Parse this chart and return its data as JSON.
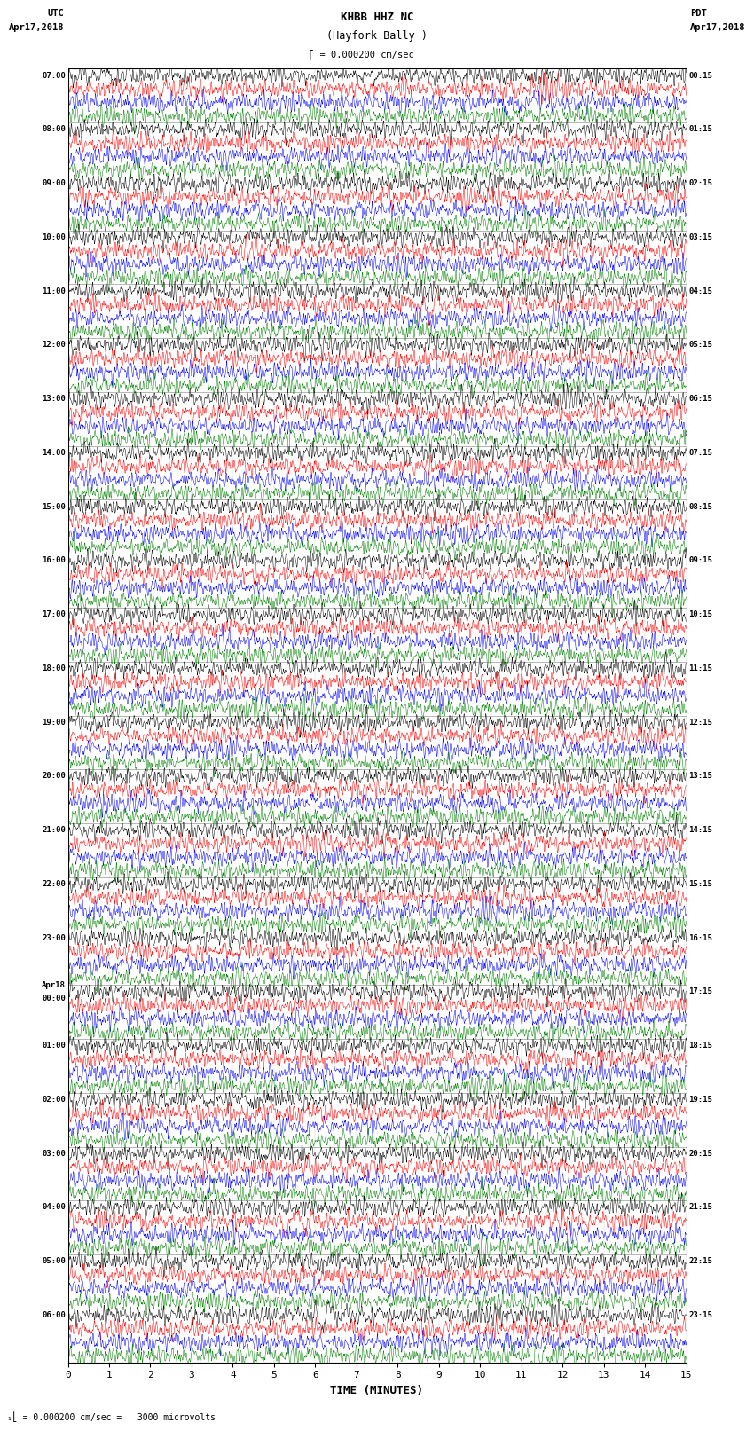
{
  "title_line1": "KHBB HHZ NC",
  "title_line2": "(Hayfork Bally )",
  "scale_label": "= 0.000200 cm/sec",
  "bottom_annotation": "= 0.000200 cm/sec =   3000 microvolts",
  "left_header": "UTC",
  "left_date": "Apr17,2018",
  "right_header": "PDT",
  "right_date": "Apr17,2018",
  "xlabel": "TIME (MINUTES)",
  "xticks": [
    0,
    1,
    2,
    3,
    4,
    5,
    6,
    7,
    8,
    9,
    10,
    11,
    12,
    13,
    14,
    15
  ],
  "figsize": [
    8.5,
    16.13
  ],
  "dpi": 100,
  "bg_color": "#ffffff",
  "trace_colors": [
    "black",
    "red",
    "blue",
    "green"
  ],
  "left_times_utc": [
    "07:00",
    "08:00",
    "09:00",
    "10:00",
    "11:00",
    "12:00",
    "13:00",
    "14:00",
    "15:00",
    "16:00",
    "17:00",
    "18:00",
    "19:00",
    "20:00",
    "21:00",
    "22:00",
    "23:00",
    "Apr18\n00:00",
    "01:00",
    "02:00",
    "03:00",
    "04:00",
    "05:00",
    "06:00"
  ],
  "right_times_pdt": [
    "00:15",
    "01:15",
    "02:15",
    "03:15",
    "04:15",
    "05:15",
    "06:15",
    "07:15",
    "08:15",
    "09:15",
    "10:15",
    "11:15",
    "12:15",
    "13:15",
    "14:15",
    "15:15",
    "16:15",
    "17:15",
    "18:15",
    "19:15",
    "20:15",
    "21:15",
    "22:15",
    "23:15"
  ],
  "n_rows": 96,
  "n_groups": 24,
  "traces_per_group": 4,
  "n_minutes": 15,
  "samples_per_minute": 200,
  "seed": 42
}
